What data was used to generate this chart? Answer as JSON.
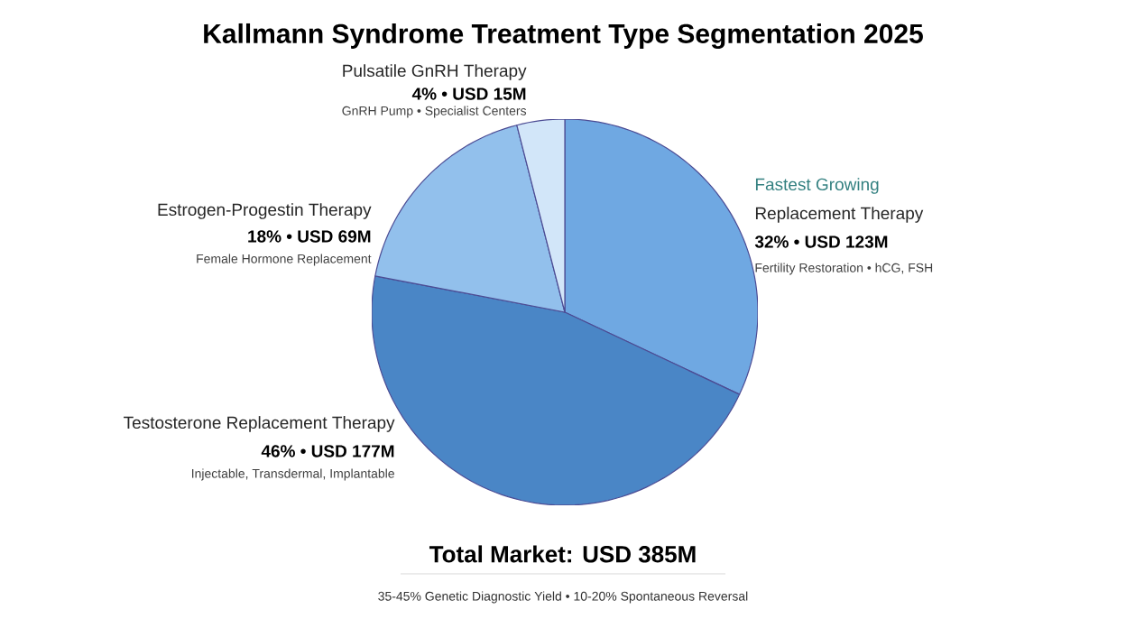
{
  "chart_data": {
    "type": "pie",
    "title": "Kallmann Syndrome Treatment Type Segmentation 2025",
    "categories": [
      "Replacement Therapy",
      "Testosterone Replacement Therapy",
      "Estrogen-Progestin Therapy",
      "Pulsatile GnRH Therapy"
    ],
    "values": [
      32,
      46,
      18,
      4
    ],
    "value_labels": [
      "32% • USD 123M",
      "46% • USD 177M",
      "18% • USD 69M",
      "4% • USD 15M"
    ],
    "colors": [
      "#6fa8e2",
      "#4a86c6",
      "#92c0ec",
      "#d2e6f9"
    ],
    "annotations": [
      "Fastest Growing",
      "Fertility Restoration • hCG, FSH",
      "Injectable, Transdermal, Implantable",
      "Female Hormone Replacement",
      "GnRH Pump • Specialist Centers",
      "Total Market: USD 385M",
      "35-45% Genetic Diagnostic Yield • 10-20% Spontaneous Reversal"
    ]
  }
}
